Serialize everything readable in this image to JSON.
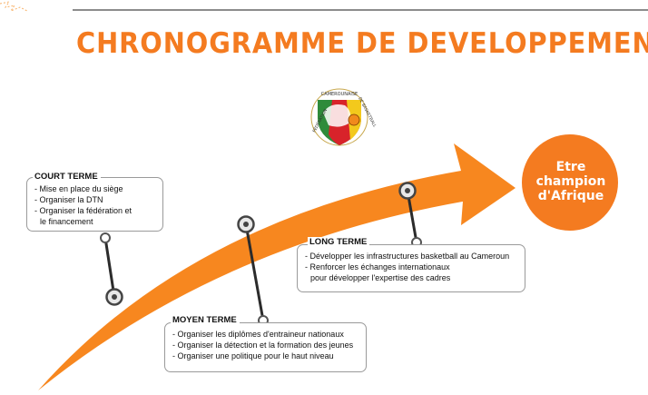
{
  "page": {
    "title": "CHRONOGRAMME DE DEVELOPPEMENT"
  },
  "colors": {
    "accent": "#f7871f",
    "title": "#f47b20",
    "dark": "#2b2b2b",
    "border": "#9a9a9a"
  },
  "logo": {
    "text_top": "CAMEROUNAISE",
    "text_left": "FÉDÉRATION",
    "text_right": "DE BASKETBALL"
  },
  "goal": {
    "lines": [
      "Etre",
      "champion",
      "d'Afrique"
    ]
  },
  "phases": {
    "court": {
      "label": "COURT TERME",
      "items": [
        "- Mise en place du siège",
        "- Organiser la DTN",
        "- Organiser la fédération et",
        "  le financement"
      ]
    },
    "moyen": {
      "label": "MOYEN TERME",
      "items": [
        "- Organiser les diplômes d'entraineur nationaux",
        "- Organiser la détection et la formation des jeunes",
        "- Organiser une politique pour le haut niveau"
      ]
    },
    "long": {
      "label": "LONG TERME",
      "items": [
        "- Développer les infrastructures basketball au Cameroun",
        "- Renforcer les échanges  internationaux",
        "  pour développer l'expertise des cadres"
      ]
    }
  }
}
